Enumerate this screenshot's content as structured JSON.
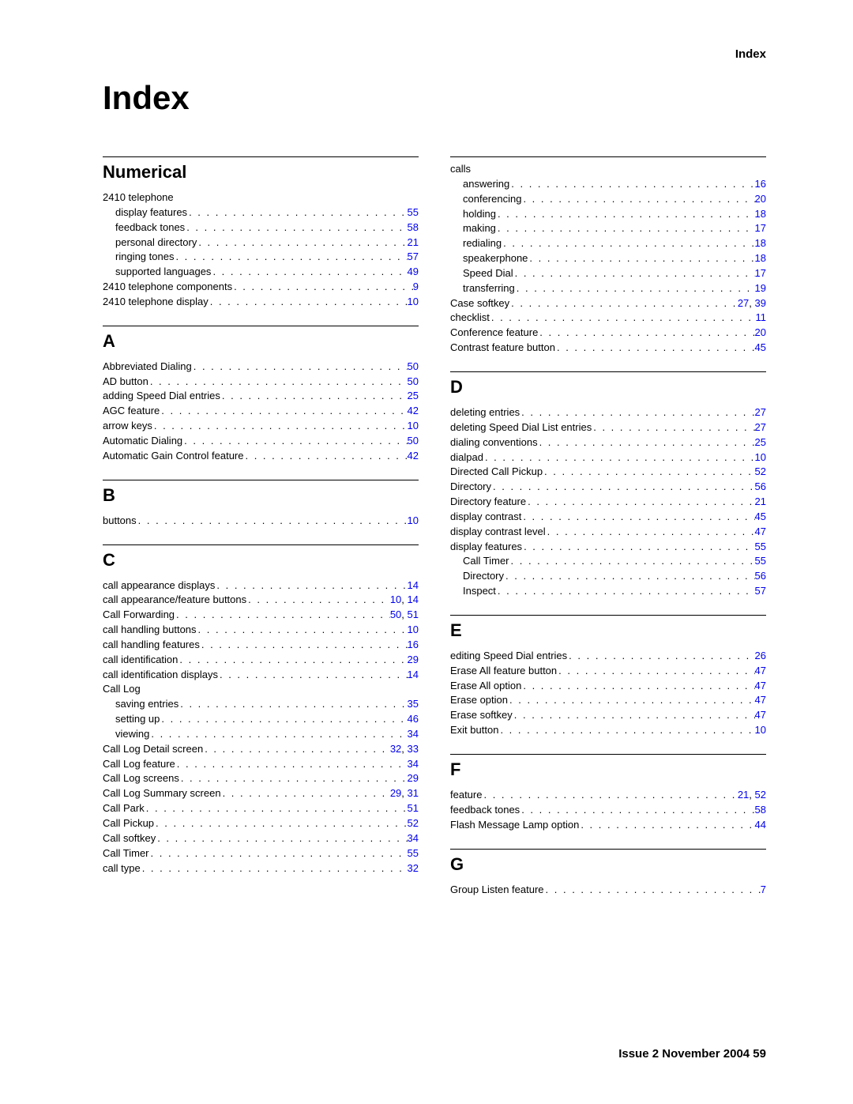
{
  "header": {
    "right": "Index"
  },
  "title": "Index",
  "footer": {
    "text": "Issue 2   November 2004   59"
  },
  "link_color": "#0000ee",
  "columns": [
    {
      "sections": [
        {
          "heading": "Numerical",
          "rule": true,
          "entries": [
            {
              "label": "2410 telephone",
              "level": 0,
              "pages": []
            },
            {
              "label": "display features",
              "level": 1,
              "pages": [
                "55"
              ]
            },
            {
              "label": "feedback tones",
              "level": 1,
              "pages": [
                "58"
              ]
            },
            {
              "label": "personal directory",
              "level": 1,
              "pages": [
                "21"
              ]
            },
            {
              "label": "ringing tones",
              "level": 1,
              "pages": [
                "57"
              ]
            },
            {
              "label": "supported languages",
              "level": 1,
              "pages": [
                "49"
              ]
            },
            {
              "label": "2410 telephone components",
              "level": 0,
              "pages": [
                "9"
              ]
            },
            {
              "label": "2410 telephone display",
              "level": 0,
              "pages": [
                "10"
              ]
            }
          ]
        },
        {
          "heading": "A",
          "rule": true,
          "entries": [
            {
              "label": "Abbreviated Dialing",
              "level": 0,
              "pages": [
                "50"
              ]
            },
            {
              "label": "AD button",
              "level": 0,
              "pages": [
                "50"
              ]
            },
            {
              "label": "adding Speed Dial entries",
              "level": 0,
              "pages": [
                "25"
              ]
            },
            {
              "label": "AGC feature",
              "level": 0,
              "pages": [
                "42"
              ]
            },
            {
              "label": "arrow keys",
              "level": 0,
              "pages": [
                "10"
              ]
            },
            {
              "label": "Automatic Dialing",
              "level": 0,
              "pages": [
                "50"
              ]
            },
            {
              "label": "Automatic Gain Control feature",
              "level": 0,
              "pages": [
                "42"
              ]
            }
          ]
        },
        {
          "heading": "B",
          "rule": true,
          "entries": [
            {
              "label": "buttons",
              "level": 0,
              "pages": [
                "10"
              ]
            }
          ]
        },
        {
          "heading": "C",
          "rule": true,
          "entries": [
            {
              "label": "call appearance displays",
              "level": 0,
              "pages": [
                "14"
              ]
            },
            {
              "label": "call appearance/feature buttons",
              "level": 0,
              "pages": [
                "10",
                "14"
              ]
            },
            {
              "label": "Call Forwarding",
              "level": 0,
              "pages": [
                "50",
                "51"
              ]
            },
            {
              "label": "call handling buttons",
              "level": 0,
              "pages": [
                "10"
              ]
            },
            {
              "label": "call handling features",
              "level": 0,
              "pages": [
                "16"
              ]
            },
            {
              "label": "call identification",
              "level": 0,
              "pages": [
                "29"
              ]
            },
            {
              "label": "call identification displays",
              "level": 0,
              "pages": [
                "14"
              ]
            },
            {
              "label": "Call Log",
              "level": 0,
              "pages": []
            },
            {
              "label": "saving entries",
              "level": 1,
              "pages": [
                "35"
              ]
            },
            {
              "label": "setting up",
              "level": 1,
              "pages": [
                "46"
              ]
            },
            {
              "label": "viewing",
              "level": 1,
              "pages": [
                "34"
              ]
            },
            {
              "label": "Call Log Detail screen",
              "level": 0,
              "pages": [
                "32",
                "33"
              ]
            },
            {
              "label": "Call Log feature",
              "level": 0,
              "pages": [
                "34"
              ]
            },
            {
              "label": "Call Log screens",
              "level": 0,
              "pages": [
                "29"
              ]
            },
            {
              "label": "Call Log Summary screen",
              "level": 0,
              "pages": [
                "29",
                "31"
              ]
            },
            {
              "label": "Call Park",
              "level": 0,
              "pages": [
                "51"
              ]
            },
            {
              "label": "Call Pickup",
              "level": 0,
              "pages": [
                "52"
              ]
            },
            {
              "label": "Call softkey",
              "level": 0,
              "pages": [
                "34"
              ]
            },
            {
              "label": "Call Timer",
              "level": 0,
              "pages": [
                "55"
              ]
            },
            {
              "label": "call type",
              "level": 0,
              "pages": [
                "32"
              ]
            }
          ]
        }
      ]
    },
    {
      "sections": [
        {
          "heading": null,
          "rule": true,
          "entries": [
            {
              "label": "calls",
              "level": 0,
              "pages": []
            },
            {
              "label": "answering",
              "level": 1,
              "pages": [
                "16"
              ]
            },
            {
              "label": "conferencing",
              "level": 1,
              "pages": [
                "20"
              ]
            },
            {
              "label": "holding",
              "level": 1,
              "pages": [
                "18"
              ]
            },
            {
              "label": "making",
              "level": 1,
              "pages": [
                "17"
              ]
            },
            {
              "label": "redialing",
              "level": 1,
              "pages": [
                "18"
              ]
            },
            {
              "label": "speakerphone",
              "level": 1,
              "pages": [
                "18"
              ]
            },
            {
              "label": "Speed Dial",
              "level": 1,
              "pages": [
                "17"
              ]
            },
            {
              "label": "transferring",
              "level": 1,
              "pages": [
                "19"
              ]
            },
            {
              "label": "Case softkey",
              "level": 0,
              "pages": [
                "27",
                "39"
              ]
            },
            {
              "label": "checklist",
              "level": 0,
              "pages": [
                "11"
              ]
            },
            {
              "label": "Conference feature",
              "level": 0,
              "pages": [
                "20"
              ]
            },
            {
              "label": "Contrast feature button",
              "level": 0,
              "pages": [
                "45"
              ]
            }
          ]
        },
        {
          "heading": "D",
          "rule": true,
          "entries": [
            {
              "label": "deleting entries",
              "level": 0,
              "pages": [
                "27"
              ]
            },
            {
              "label": "deleting Speed Dial List entries",
              "level": 0,
              "pages": [
                "27"
              ]
            },
            {
              "label": "dialing conventions",
              "level": 0,
              "pages": [
                "25"
              ]
            },
            {
              "label": "dialpad",
              "level": 0,
              "pages": [
                "10"
              ]
            },
            {
              "label": "Directed Call Pickup",
              "level": 0,
              "pages": [
                "52"
              ]
            },
            {
              "label": "Directory",
              "level": 0,
              "pages": [
                "56"
              ]
            },
            {
              "label": "Directory feature",
              "level": 0,
              "pages": [
                "21"
              ]
            },
            {
              "label": "display contrast",
              "level": 0,
              "pages": [
                "45"
              ]
            },
            {
              "label": "display contrast level",
              "level": 0,
              "pages": [
                "47"
              ]
            },
            {
              "label": "display features",
              "level": 0,
              "pages": [
                "55"
              ]
            },
            {
              "label": "Call Timer",
              "level": 1,
              "pages": [
                "55"
              ]
            },
            {
              "label": "Directory",
              "level": 1,
              "pages": [
                "56"
              ]
            },
            {
              "label": "Inspect",
              "level": 1,
              "pages": [
                "57"
              ]
            }
          ]
        },
        {
          "heading": "E",
          "rule": true,
          "entries": [
            {
              "label": "editing Speed Dial entries",
              "level": 0,
              "pages": [
                "26"
              ]
            },
            {
              "label": "Erase All feature button",
              "level": 0,
              "pages": [
                "47"
              ]
            },
            {
              "label": "Erase All option",
              "level": 0,
              "pages": [
                "47"
              ]
            },
            {
              "label": "Erase option",
              "level": 0,
              "pages": [
                "47"
              ]
            },
            {
              "label": "Erase softkey",
              "level": 0,
              "pages": [
                "47"
              ]
            },
            {
              "label": "Exit button",
              "level": 0,
              "pages": [
                "10"
              ]
            }
          ]
        },
        {
          "heading": "F",
          "rule": true,
          "entries": [
            {
              "label": "feature",
              "level": 0,
              "pages": [
                "21",
                "52"
              ]
            },
            {
              "label": "feedback tones",
              "level": 0,
              "pages": [
                "58"
              ]
            },
            {
              "label": "Flash Message Lamp option",
              "level": 0,
              "pages": [
                "44"
              ]
            }
          ]
        },
        {
          "heading": "G",
          "rule": true,
          "entries": [
            {
              "label": "Group Listen feature",
              "level": 0,
              "pages": [
                "7"
              ]
            }
          ]
        }
      ]
    }
  ]
}
